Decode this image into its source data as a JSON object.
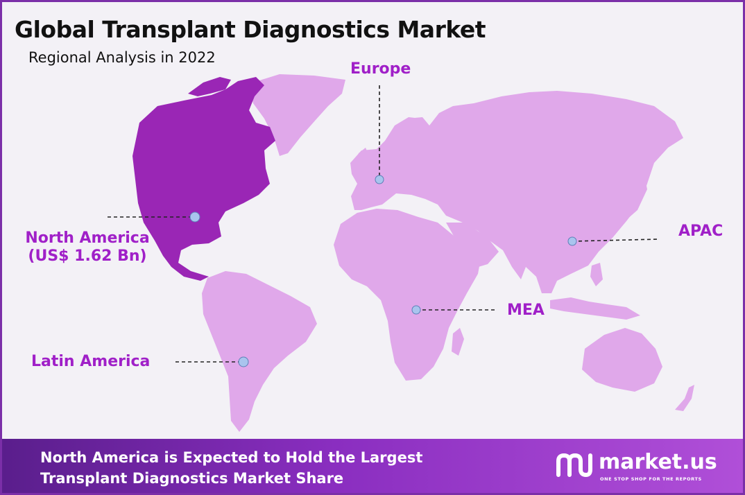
{
  "header": {
    "title": "Global Transplant Diagnostics Market",
    "subtitle": "Regional Analysis in 2022"
  },
  "colors": {
    "highlight_region": "#9a26b5",
    "other_regions": "#e0a8ea",
    "label_text": "#a020c8",
    "marker_fill": "#a9c4ee",
    "frame_border": "#7b2fa8"
  },
  "map": {
    "highlighted_region": "North America",
    "regions": [
      {
        "id": "north-america",
        "label": "North America",
        "value_label": "(US$ 1.62 Bn)"
      },
      {
        "id": "europe",
        "label": "Europe"
      },
      {
        "id": "apac",
        "label": "APAC"
      },
      {
        "id": "mea",
        "label": "MEA"
      },
      {
        "id": "latin-america",
        "label": "Latin America"
      }
    ]
  },
  "footer": {
    "line1": "North America is Expected to Hold the Largest",
    "line2": "Transplant Diagnostics Market Share"
  },
  "brand": {
    "name": "market.us",
    "tagline": "ONE STOP SHOP FOR THE REPORTS"
  }
}
